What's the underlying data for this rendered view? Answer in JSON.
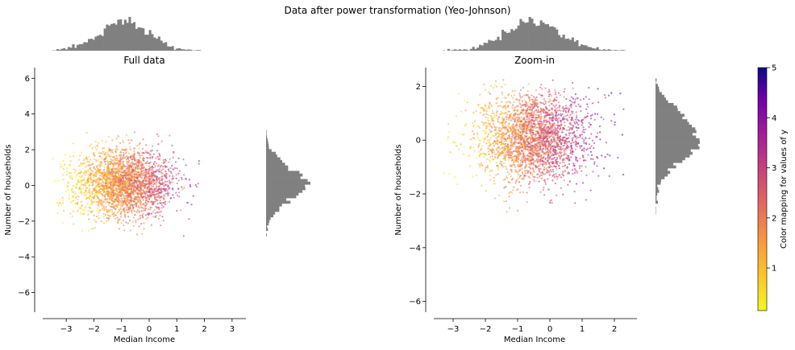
{
  "figure": {
    "suptitle": "Data after power transformation (Yeo-Johnson)"
  },
  "chart_data": [
    {
      "type": "scatter",
      "title": "Full data",
      "xlabel": "Median Income",
      "ylabel": "Number of households",
      "xlim": [
        -3.85,
        3.5
      ],
      "ylim": [
        -7.1,
        6.6
      ],
      "xticks": [
        -3,
        -2,
        -1,
        0,
        1,
        2,
        3
      ],
      "yticks": [
        -6,
        -4,
        -2,
        0,
        2,
        4,
        6
      ],
      "colormap": "plasma_r",
      "point_color_range": [
        0.15,
        5.0
      ],
      "cloud": {
        "x_mean": -0.9,
        "x_sd": 0.9,
        "y_mean": 0.1,
        "y_sd": 0.95
      },
      "marginal_x_hist": "yes",
      "marginal_y_hist": "yes"
    },
    {
      "type": "scatter",
      "title": "Zoom-in",
      "xlabel": "Median Income",
      "ylabel": "Number of households",
      "xlim": [
        -3.6,
        2.7
      ],
      "ylim": [
        -6.4,
        2.7
      ],
      "xticks": [
        -3,
        -2,
        -1,
        0,
        1,
        2
      ],
      "yticks": [
        -6,
        -4,
        -2,
        0,
        2
      ],
      "colormap": "plasma_r",
      "point_color_range": [
        0.15,
        5.0
      ],
      "cloud": {
        "x_mean": -0.5,
        "x_sd": 0.85,
        "y_mean": 0.1,
        "y_sd": 0.85
      },
      "marginal_x_hist": "yes",
      "marginal_y_hist": "yes"
    }
  ],
  "colorbar": {
    "label": "Color mapping for values of y",
    "range": [
      0.15,
      5.0
    ],
    "ticks": [
      "1",
      "2",
      "3",
      "4",
      "5"
    ],
    "tick_values": [
      1,
      2,
      3,
      4,
      5
    ]
  }
}
